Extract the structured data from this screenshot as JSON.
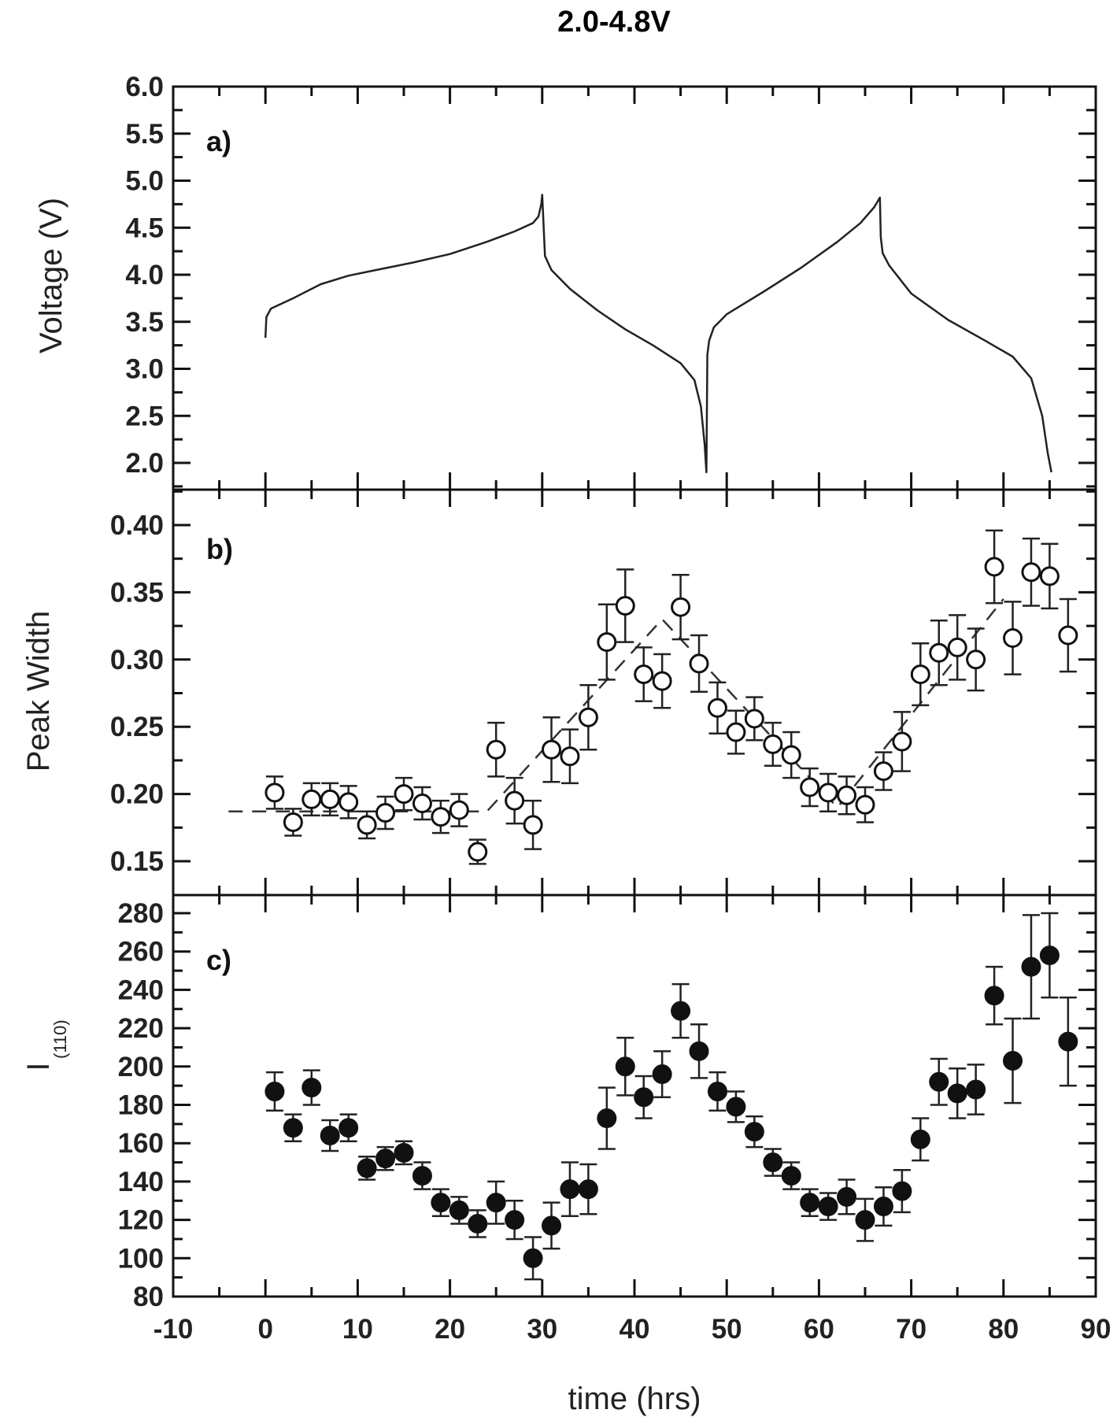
{
  "figure": {
    "title": "2.0-4.8V",
    "xlabel": "time (hrs)",
    "xticks": [
      -10,
      0,
      10,
      20,
      30,
      40,
      50,
      60,
      70,
      80,
      90
    ],
    "xlim": [
      -10,
      90
    ]
  },
  "chart_data": [
    {
      "panel": "a)",
      "type": "line",
      "ylabel": "Voltage (V)",
      "ylim": [
        1.75,
        6.0
      ],
      "yticks": [
        2.0,
        2.5,
        3.0,
        3.5,
        4.0,
        4.5,
        5.0,
        5.5,
        6.0
      ],
      "x": [
        0,
        0.1,
        0.6,
        3,
        6,
        9,
        12,
        16,
        20,
        24,
        27,
        29,
        29.6,
        29.9,
        30.0,
        30.3,
        31,
        33,
        36,
        39,
        42,
        45,
        46.5,
        47.2,
        47.6,
        47.8,
        47.9,
        48.1,
        48.6,
        50,
        54,
        58,
        62,
        64.5,
        66,
        66.6,
        66.7,
        66.9,
        67.6,
        70,
        74,
        78,
        81,
        83,
        84.2,
        84.8,
        85.2
      ],
      "y": [
        3.33,
        3.55,
        3.64,
        3.75,
        3.9,
        3.99,
        4.05,
        4.13,
        4.22,
        4.35,
        4.46,
        4.55,
        4.62,
        4.75,
        4.85,
        4.2,
        4.05,
        3.85,
        3.62,
        3.42,
        3.25,
        3.06,
        2.88,
        2.6,
        2.2,
        1.9,
        3.15,
        3.3,
        3.44,
        3.58,
        3.82,
        4.07,
        4.35,
        4.55,
        4.72,
        4.82,
        4.4,
        4.23,
        4.1,
        3.8,
        3.52,
        3.3,
        3.13,
        2.9,
        2.5,
        2.1,
        1.9
      ]
    },
    {
      "panel": "b)",
      "type": "scatter",
      "ylabel": "Peak Width",
      "ylim": [
        0.13,
        0.42
      ],
      "yticks": [
        0.15,
        0.2,
        0.25,
        0.3,
        0.35,
        0.4
      ],
      "marker": "open-circle",
      "x": [
        1,
        3,
        5,
        7,
        9,
        11,
        13,
        15,
        17,
        19,
        21,
        23,
        25,
        27,
        29,
        31,
        33,
        35,
        37,
        39,
        41,
        43,
        45,
        47,
        49,
        51,
        53,
        55,
        57,
        59,
        61,
        63,
        65,
        67,
        69,
        71,
        73,
        75,
        77,
        79,
        81,
        83,
        85,
        87
      ],
      "y": [
        0.201,
        0.179,
        0.196,
        0.196,
        0.194,
        0.177,
        0.186,
        0.2,
        0.193,
        0.183,
        0.188,
        0.157,
        0.233,
        0.195,
        0.177,
        0.233,
        0.228,
        0.257,
        0.313,
        0.34,
        0.289,
        0.284,
        0.339,
        0.297,
        0.264,
        0.246,
        0.256,
        0.237,
        0.229,
        0.205,
        0.201,
        0.199,
        0.192,
        0.217,
        0.239,
        0.289,
        0.305,
        0.309,
        0.3,
        0.369,
        0.316,
        0.365,
        0.362,
        0.318
      ],
      "yerr": [
        0.012,
        0.01,
        0.012,
        0.012,
        0.012,
        0.01,
        0.012,
        0.012,
        0.012,
        0.012,
        0.012,
        0.009,
        0.02,
        0.017,
        0.018,
        0.024,
        0.02,
        0.024,
        0.028,
        0.027,
        0.02,
        0.02,
        0.024,
        0.021,
        0.019,
        0.016,
        0.016,
        0.016,
        0.017,
        0.014,
        0.014,
        0.014,
        0.013,
        0.014,
        0.022,
        0.023,
        0.024,
        0.024,
        0.023,
        0.027,
        0.027,
        0.025,
        0.024,
        0.027
      ],
      "trend_line": {
        "style": "dashed",
        "x": [
          -4,
          24,
          43,
          62,
          80
        ],
        "y": [
          0.187,
          0.187,
          0.33,
          0.19,
          0.345
        ]
      }
    },
    {
      "panel": "c)",
      "type": "scatter",
      "ylabel": "I(110)",
      "ylabel_main": "I",
      "ylabel_sub": "(110)",
      "ylim": [
        80,
        290
      ],
      "yticks": [
        80,
        100,
        120,
        140,
        160,
        180,
        200,
        220,
        240,
        260,
        280
      ],
      "marker": "filled-circle",
      "x": [
        1,
        3,
        5,
        7,
        9,
        11,
        13,
        15,
        17,
        19,
        21,
        23,
        25,
        27,
        29,
        31,
        33,
        35,
        37,
        39,
        41,
        43,
        45,
        47,
        49,
        51,
        53,
        55,
        57,
        59,
        61,
        63,
        65,
        67,
        69,
        71,
        73,
        75,
        77,
        79,
        81,
        83,
        85,
        87
      ],
      "y": [
        187,
        168,
        189,
        164,
        168,
        147,
        152,
        155,
        143,
        129,
        125,
        118,
        129,
        120,
        100,
        117,
        136,
        136,
        173,
        200,
        184,
        196,
        229,
        208,
        187,
        179,
        166,
        150,
        143,
        129,
        127,
        132,
        120,
        127,
        135,
        162,
        192,
        186,
        188,
        237,
        203,
        252,
        258,
        213
      ],
      "yerr": [
        10,
        7,
        9,
        8,
        7,
        6,
        6,
        6,
        7,
        7,
        7,
        7,
        11,
        10,
        11,
        12,
        14,
        13,
        16,
        15,
        11,
        12,
        14,
        14,
        10,
        8,
        8,
        7,
        7,
        7,
        7,
        9,
        11,
        10,
        11,
        11,
        12,
        13,
        13,
        15,
        22,
        27,
        22,
        23
      ]
    }
  ]
}
